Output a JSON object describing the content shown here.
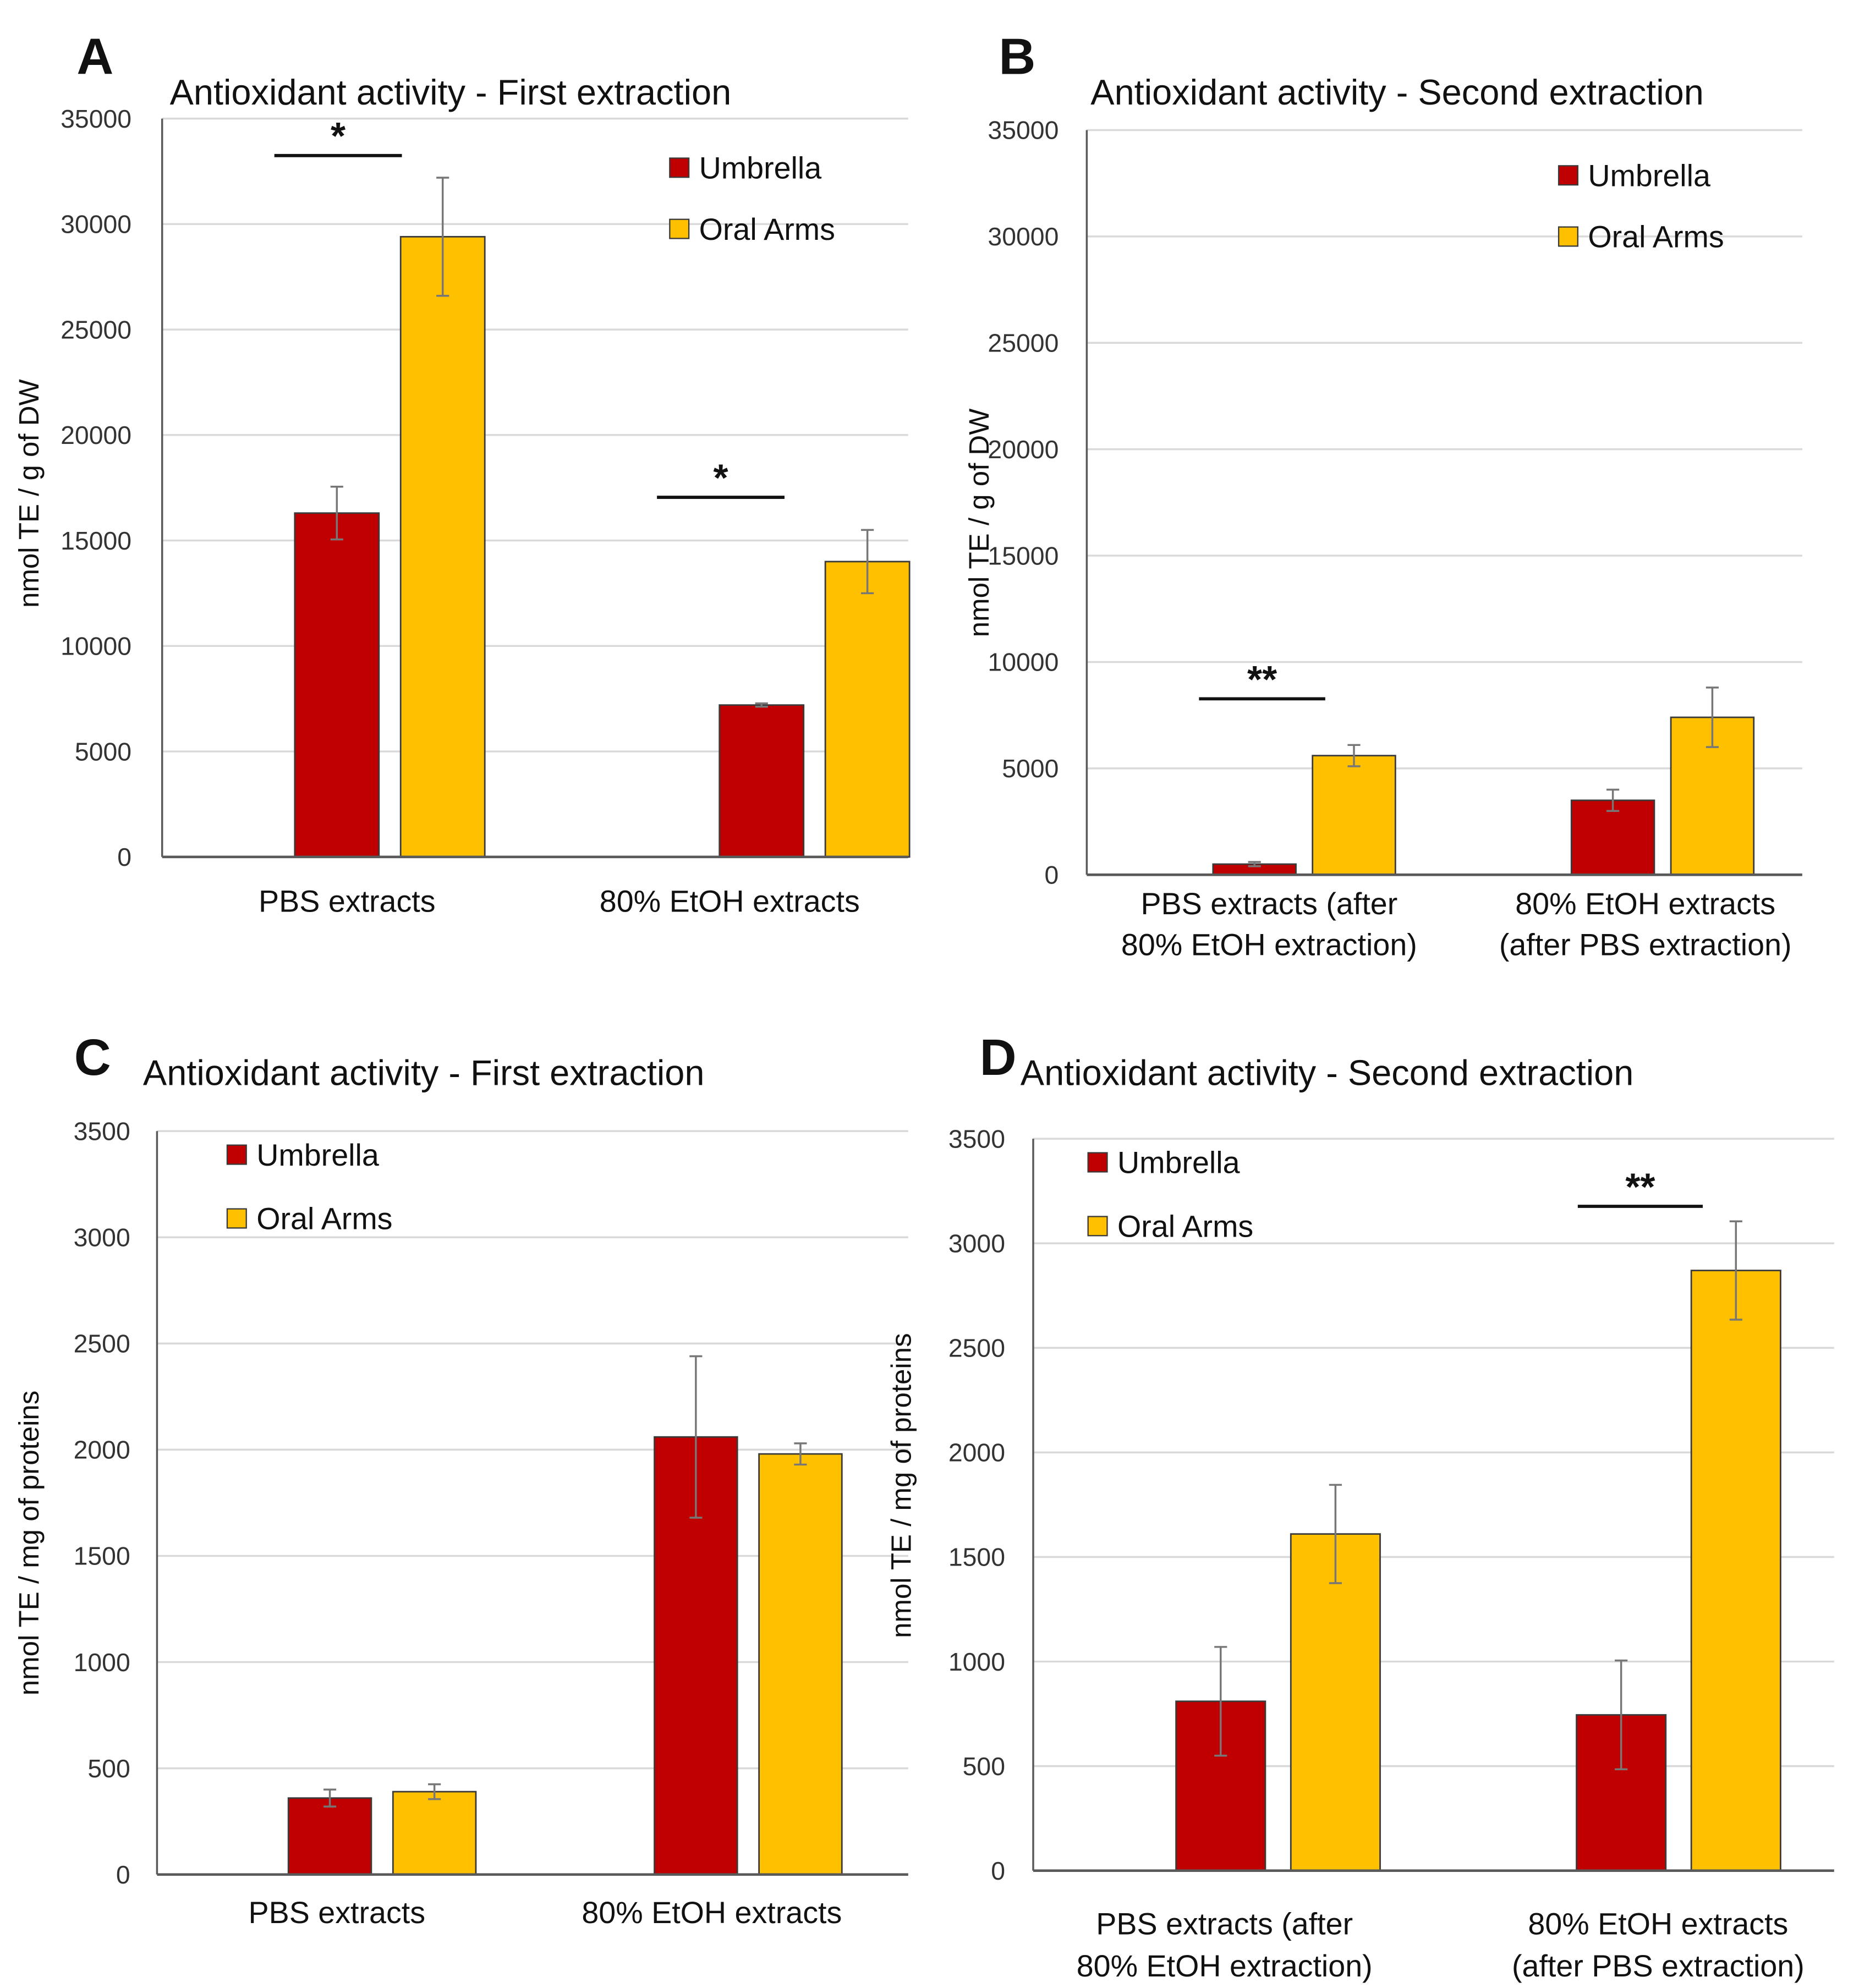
{
  "colors": {
    "Umbrella": "#C00000",
    "Oral Arms": "#FFC000",
    "grid": "#D9D9D9",
    "axis": "#595959"
  },
  "chart_data": [
    {
      "panel": "A",
      "type": "bar",
      "title": "Antioxidant activity - First  extraction",
      "ylabel": "nmol TE / g of DW",
      "xlabel": "",
      "ylim": [
        0,
        35000
      ],
      "yticks": [
        0,
        5000,
        10000,
        15000,
        20000,
        25000,
        30000,
        35000
      ],
      "grid": true,
      "legend_position": "top-right",
      "categories": [
        [
          "PBS extracts"
        ],
        [
          "80% EtOH extracts"
        ]
      ],
      "series": [
        {
          "name": "Umbrella",
          "values": [
            16300,
            7200
          ],
          "errors": [
            1250,
            80
          ]
        },
        {
          "name": "Oral Arms",
          "values": [
            29400,
            14000
          ],
          "errors": [
            2800,
            1500
          ]
        }
      ],
      "significance": [
        {
          "category": 0,
          "label": "*"
        },
        {
          "category": 1,
          "label": "*"
        }
      ]
    },
    {
      "panel": "B",
      "type": "bar",
      "title": "Antioxidant activity - Second extraction",
      "ylabel": "nmol TE / g of DW",
      "xlabel": "",
      "ylim": [
        0,
        35000
      ],
      "yticks": [
        0,
        5000,
        10000,
        15000,
        20000,
        25000,
        30000,
        35000
      ],
      "grid": true,
      "legend_position": "top-right",
      "categories": [
        [
          "PBS extracts (after",
          "80% EtOH extraction)"
        ],
        [
          "80% EtOH extracts",
          "(after PBS extraction)"
        ]
      ],
      "series": [
        {
          "name": "Umbrella",
          "values": [
            500,
            3500
          ],
          "errors": [
            100,
            500
          ]
        },
        {
          "name": "Oral Arms",
          "values": [
            5600,
            7400
          ],
          "errors": [
            500,
            1400
          ]
        }
      ],
      "significance": [
        {
          "category": 0,
          "label": "**"
        }
      ]
    },
    {
      "panel": "C",
      "type": "bar",
      "title": "Antioxidant activity - First extraction",
      "ylabel": "nmol TE / mg of proteins",
      "xlabel": "",
      "ylim": [
        0,
        3500
      ],
      "yticks": [
        0,
        500,
        1000,
        1500,
        2000,
        2500,
        3000,
        3500
      ],
      "grid": true,
      "legend_position": "top-left",
      "categories": [
        [
          "PBS extracts"
        ],
        [
          "80% EtOH extracts"
        ]
      ],
      "series": [
        {
          "name": "Umbrella",
          "values": [
            360,
            2060
          ],
          "errors": [
            40,
            380
          ]
        },
        {
          "name": "Oral Arms",
          "values": [
            390,
            1980
          ],
          "errors": [
            35,
            50
          ]
        }
      ],
      "significance": []
    },
    {
      "panel": "D",
      "type": "bar",
      "title": "Antioxidant activity - Second extraction",
      "ylabel": "nmol TE / mg of proteins",
      "xlabel": "",
      "ylim": [
        0,
        3500
      ],
      "yticks": [
        0,
        500,
        1000,
        1500,
        2000,
        2500,
        3000,
        3500
      ],
      "grid": true,
      "legend_position": "top-left",
      "categories": [
        [
          "PBS extracts (after",
          "80% EtOH extraction)"
        ],
        [
          "80% EtOH extracts",
          "(after PBS extraction)"
        ]
      ],
      "series": [
        {
          "name": "Umbrella",
          "values": [
            810,
            745
          ],
          "errors": [
            260,
            260
          ]
        },
        {
          "name": "Oral Arms",
          "values": [
            1610,
            2870
          ],
          "errors": [
            235,
            235
          ]
        }
      ],
      "significance": [
        {
          "category": 1,
          "label": "**"
        }
      ]
    }
  ]
}
